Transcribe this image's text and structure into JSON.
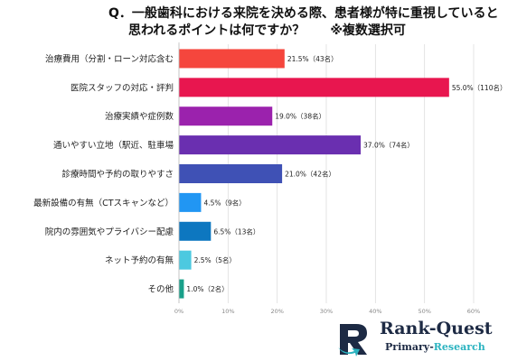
{
  "title": {
    "line1": "Q．一般歯科における来院を決める際、患者様が特に重視していると",
    "line2": "思われるポイントは何ですか？",
    "note": "※複数選択可"
  },
  "chart_data": {
    "type": "bar",
    "orientation": "horizontal",
    "categories": [
      "治療費用（分割・ローン対応含む",
      "医院スタッフの対応・評判",
      "治療実績や症例数",
      "通いやすい立地（駅近、駐車場",
      "診療時間や予約の取りやすさ",
      "最新設備の有無（CTスキャンなど）",
      "院内の雰囲気やプライバシー配慮",
      "ネット予約の有無",
      "その他"
    ],
    "values": [
      21.5,
      55.0,
      19.0,
      37.0,
      21.0,
      4.5,
      6.5,
      2.5,
      1.0
    ],
    "value_labels": [
      "21.5%（43名）",
      "55.0%（110名）",
      "19.0%（38名）",
      "37.0%（74名）",
      "21.0%（42名）",
      "4.5%（9名）",
      "6.5%（13名）",
      "2.5%（5名）",
      "1.0%（2名）"
    ],
    "colors": [
      "#f5463d",
      "#e8164f",
      "#9b22ad",
      "#6a2fb0",
      "#3f51b5",
      "#2196f3",
      "#0d77c0",
      "#4cc9e0",
      "#19a08a"
    ],
    "xlim": [
      0,
      60
    ],
    "xticks": [
      "0%",
      "10%",
      "20%",
      "30%",
      "40%",
      "50%",
      "60%"
    ],
    "grid": true
  },
  "logo": {
    "brand": "Rank-Quest",
    "sub_left": "Primary-",
    "sub_right": "Research"
  }
}
